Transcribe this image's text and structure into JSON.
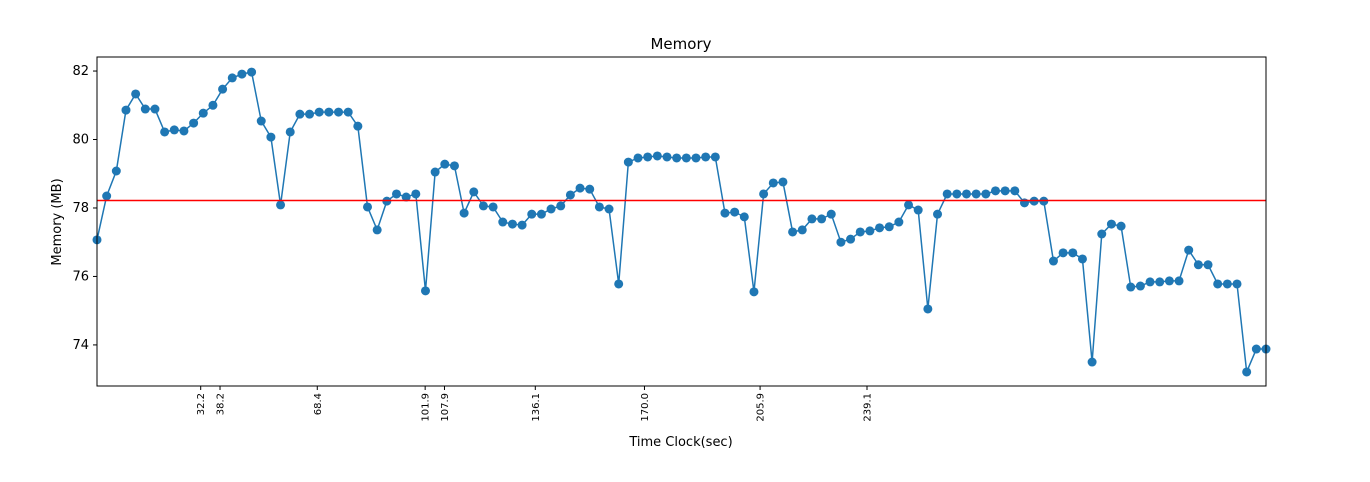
{
  "chart_data": {
    "type": "line",
    "title": "Memory",
    "x_label": "Time Clock(sec)",
    "y_label": "Memory (MB)",
    "x": [
      0,
      3,
      6,
      9,
      12,
      15,
      18,
      21,
      24,
      27,
      30,
      33,
      36,
      39,
      42,
      45,
      48,
      51,
      54,
      57,
      60,
      63,
      66,
      69,
      72,
      75,
      78,
      81,
      84,
      87,
      90,
      93,
      96,
      99,
      102,
      105,
      108,
      111,
      114,
      117,
      120,
      123,
      126,
      129,
      132,
      135,
      138,
      141,
      144,
      147,
      150,
      153,
      156,
      159,
      162,
      165,
      168,
      171,
      174,
      177,
      180,
      183,
      186,
      189,
      192,
      195,
      198,
      201,
      204,
      207,
      210,
      213,
      216,
      219,
      222,
      225,
      228,
      231,
      234,
      237,
      240,
      243,
      246,
      249,
      252,
      255,
      258,
      261,
      264,
      267,
      270,
      273,
      276,
      279,
      282,
      285,
      288,
      291,
      294,
      297,
      300,
      303,
      306,
      309,
      312,
      315,
      318,
      321,
      324,
      327,
      330,
      333,
      336,
      339,
      342,
      345,
      348,
      351,
      354,
      357,
      360,
      363
    ],
    "series": [
      {
        "name": "Memory",
        "color": "#1f77b4",
        "values": [
          77.07,
          78.35,
          79.08,
          80.86,
          81.33,
          80.89,
          80.89,
          80.22,
          80.28,
          80.25,
          80.48,
          80.77,
          81.0,
          81.47,
          81.8,
          81.91,
          81.97,
          80.54,
          80.07,
          78.09,
          80.22,
          80.74,
          80.74,
          80.8,
          80.8,
          80.8,
          80.8,
          80.39,
          78.03,
          77.36,
          78.2,
          78.41,
          78.32,
          78.41,
          75.58,
          79.05,
          79.28,
          79.23,
          77.85,
          78.47,
          78.06,
          78.03,
          77.59,
          77.53,
          77.5,
          77.82,
          77.82,
          77.97,
          78.06,
          78.38,
          78.58,
          78.55,
          78.03,
          77.97,
          75.78,
          79.34,
          79.46,
          79.49,
          79.52,
          79.49,
          79.46,
          79.46,
          79.46,
          79.49,
          79.49,
          77.85,
          77.88,
          77.74,
          75.55,
          78.41,
          78.73,
          78.76,
          77.3,
          77.36,
          77.68,
          77.68,
          77.82,
          77.0,
          77.09,
          77.3,
          77.33,
          77.42,
          77.45,
          77.59,
          78.09,
          77.94,
          75.05,
          77.82,
          78.41,
          78.41,
          78.41,
          78.41,
          78.41,
          78.5,
          78.5,
          78.5,
          78.15,
          78.2,
          78.2,
          76.45,
          76.69,
          76.69,
          76.51,
          73.5,
          77.24,
          77.53,
          77.47,
          75.69,
          75.72,
          75.84,
          75.84,
          75.87,
          75.87,
          76.77,
          76.34,
          76.34,
          75.78,
          75.78,
          75.78,
          73.21,
          73.88,
          73.88
        ]
      }
    ],
    "hline": {
      "value": 78.22,
      "color": "#ff0000"
    },
    "xlim": [
      0,
      363
    ],
    "ylim": [
      72.8,
      82.41
    ],
    "xticks": [
      32.2,
      38.2,
      68.4,
      101.9,
      107.9,
      136.1,
      {
        "value": 170,
        "label": "170.0"
      },
      205.9,
      239.1
    ],
    "yticks": [
      74,
      76,
      78,
      80,
      82
    ]
  }
}
